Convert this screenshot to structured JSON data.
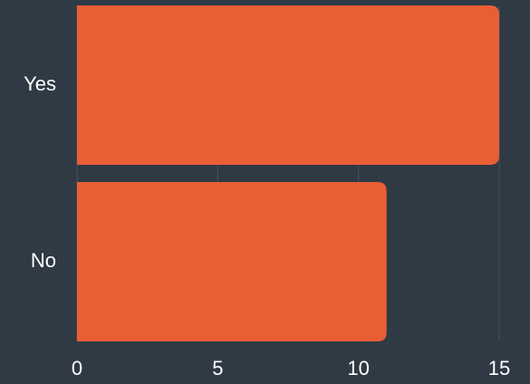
{
  "chart_data": {
    "type": "bar",
    "orientation": "horizontal",
    "categories": [
      "Yes",
      "No"
    ],
    "values": [
      15,
      11
    ],
    "xlim": [
      0,
      15
    ],
    "xticks": [
      "0",
      "5",
      "10",
      "15"
    ],
    "title": "",
    "xlabel": "",
    "ylabel": "",
    "grid": "vertical",
    "legend": "none"
  },
  "colors": {
    "background": "#2f3a45",
    "bar": "#ea5e36",
    "grid": "#475360",
    "text": "#ffffff"
  }
}
